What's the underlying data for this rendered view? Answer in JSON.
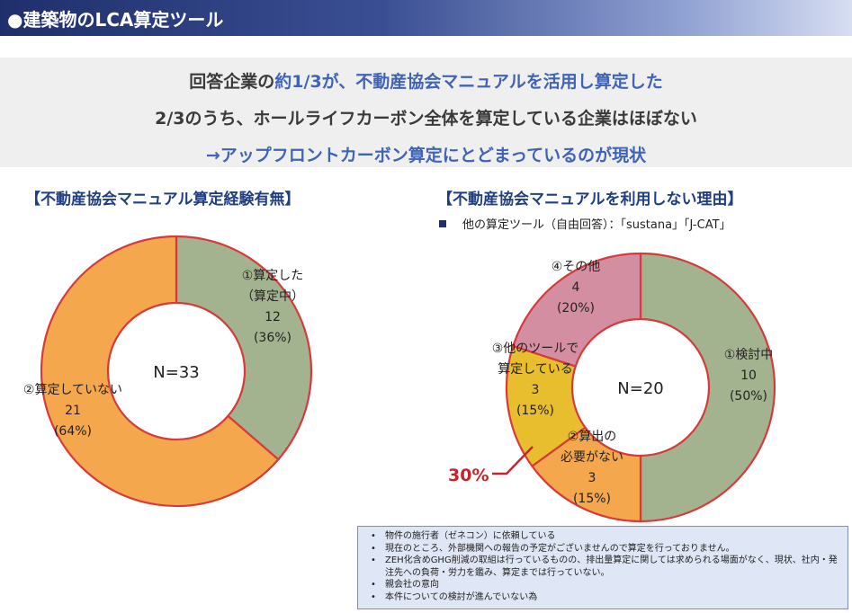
{
  "header": {
    "title": "●建築物のLCA算定ツール"
  },
  "summary": {
    "line1_pre": "回答企業の",
    "line1_hl": "約1/3が、不動産協会マニュアルを活用し算定した",
    "line2": "2/3のうち、ホールライフカーボン全体を算定している企業はほぼない",
    "line3": "→アップフロントカーボン算定にとどまっているのが現状"
  },
  "note": {
    "text": "他の算定ツール（自由回答）：「sustana」「J-CAT」"
  },
  "reasons": [
    "物件の施行者（ゼネコン）に依頼している",
    "現在のところ、外部機関への報告の予定がございませんので算定を行っておりません。",
    "ZEH化含めGHG削減の取組は行っているものの、排出量算定に関しては求められる場面がなく、現状、社内・発注先への負荷・労力を鑑み、算定までは行っていない。",
    "親会社の意向",
    "本件についての検討が進んでいない為"
  ],
  "colors": {
    "green": "#a4b38f",
    "orange": "#f4a74c",
    "yellow": "#e8be2e",
    "pink": "#d48ea2",
    "border": "#d63a3a",
    "accent_red": "#c8232b"
  },
  "chart_data": [
    {
      "type": "pie",
      "title": "【不動産協会マニュアル算定経験有無】",
      "center_label": "N=33",
      "slices": [
        {
          "label_lines": [
            "①算定した",
            "（算定中）"
          ],
          "value": 12,
          "percent_label": "(36%)",
          "color": "#a4b38f"
        },
        {
          "label_lines": [
            "②算定していない"
          ],
          "value": 21,
          "percent_label": "(64%)",
          "color": "#f4a74c"
        }
      ]
    },
    {
      "type": "pie",
      "title": "【不動産協会マニュアルを利用しない理由】",
      "center_label": "N=20",
      "annotation": "30%",
      "slices": [
        {
          "label_lines": [
            "①検討中"
          ],
          "value": 10,
          "percent_label": "(50%)",
          "color": "#a4b38f"
        },
        {
          "label_lines": [
            "②算出の",
            "必要がない"
          ],
          "value": 3,
          "percent_label": "(15%)",
          "color": "#f4a74c"
        },
        {
          "label_lines": [
            "③他のツールで",
            "算定している"
          ],
          "value": 3,
          "percent_label": "(15%)",
          "color": "#e8be2e"
        },
        {
          "label_lines": [
            "④その他"
          ],
          "value": 4,
          "percent_label": "(20%)",
          "color": "#d48ea2"
        }
      ]
    }
  ]
}
